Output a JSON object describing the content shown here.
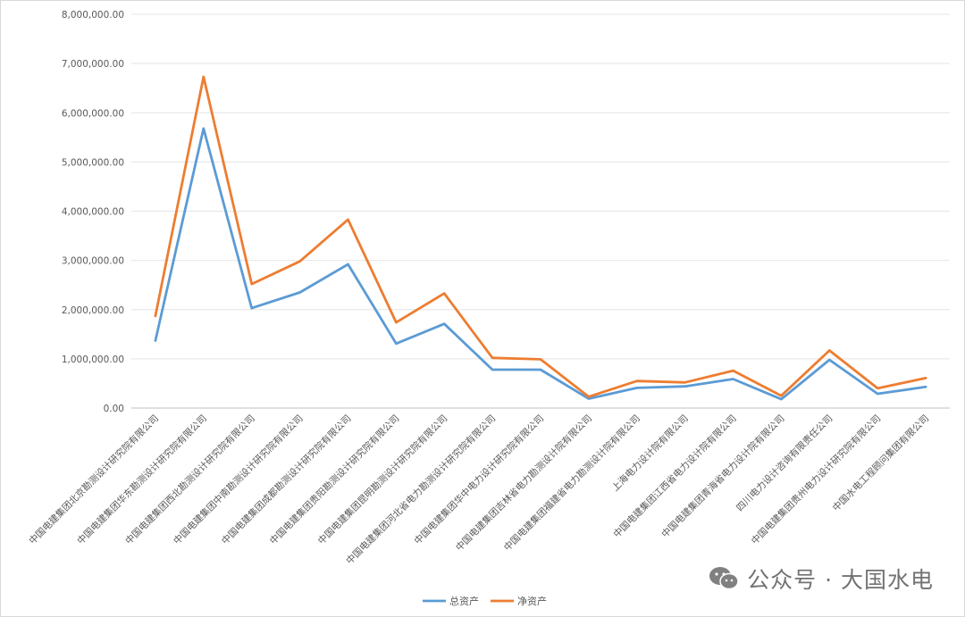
{
  "chart_data": {
    "type": "line",
    "categories": [
      "中国电建集团北京勘测设计研究院有限公司",
      "中国电建集团华东勘测设计研究院有限公司",
      "中国电建集团西北勘测设计研究院有限公司",
      "中国电建集团中南勘测设计研究院有限公司",
      "中国电建集团成都勘测设计研究院有限公司",
      "中国电建集团贵阳勘测设计研究院有限公司",
      "中国电建集团昆明勘测设计研究院有限公司",
      "中国电建集团河北省电力勘测设计研究院有限公司",
      "中国电建集团华中电力设计研究院有限公司",
      "中国电建集团吉林省电力勘测设计院有限公司",
      "中国电建集团福建省电力勘测设计院有限公司",
      "上海电力设计院有限公司",
      "中国电建集团江西省电力设计院有限公司",
      "中国电建集团青海省电力设计院有限公司",
      "四川电力设计咨询有限责任公司",
      "中国电建集团贵州电力设计研究院有限公司",
      "中国水电工程顾问集团有限公司"
    ],
    "series": [
      {
        "name": "总资产",
        "color": "#5B9BD5",
        "values": [
          1370000,
          5680000,
          2030000,
          2350000,
          2920000,
          1310000,
          1710000,
          780000,
          780000,
          190000,
          410000,
          440000,
          590000,
          180000,
          980000,
          290000,
          430000
        ]
      },
      {
        "name": "净资产",
        "color": "#ED7D31",
        "values": [
          1870000,
          6730000,
          2520000,
          2980000,
          3830000,
          1740000,
          2330000,
          1020000,
          990000,
          230000,
          550000,
          520000,
          760000,
          250000,
          1170000,
          400000,
          610000
        ]
      }
    ],
    "ylim": [
      0,
      8000000
    ],
    "yticks": [
      "0.00",
      "1,000,000.00",
      "2,000,000.00",
      "3,000,000.00",
      "4,000,000.00",
      "5,000,000.00",
      "6,000,000.00",
      "7,000,000.00",
      "8,000,000.00"
    ],
    "grid": true,
    "legend_position": "bottom"
  },
  "watermark": {
    "text": "公众号 · 大国水电",
    "icon": "wechat-icon"
  }
}
